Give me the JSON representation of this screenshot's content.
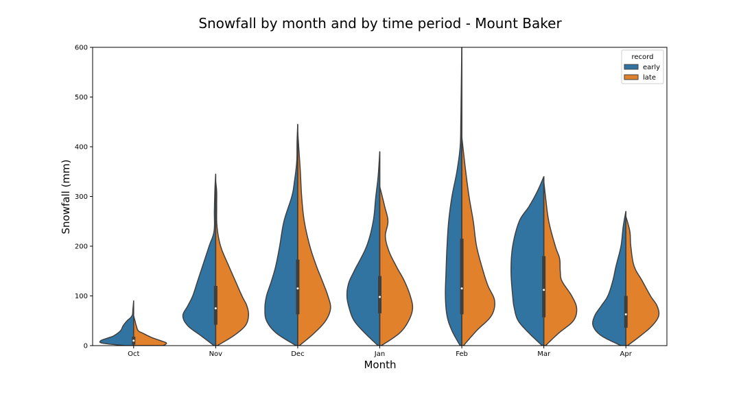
{
  "chart_data": {
    "type": "violin",
    "title": "Snowfall by month and by time period - Mount Baker",
    "xlabel": "Month",
    "ylabel": "Snowfall (mm)",
    "ylim": [
      0,
      600
    ],
    "yticks": [
      0,
      100,
      200,
      300,
      400,
      500,
      600
    ],
    "categories": [
      "Oct",
      "Nov",
      "Dec",
      "Jan",
      "Feb",
      "Mar",
      "Apr"
    ],
    "split": true,
    "legend": {
      "title": "record",
      "position": "top-right",
      "entries": [
        "early",
        "late"
      ]
    },
    "colors": {
      "early": "#3274a1",
      "late": "#e1812c",
      "outline": "#3f3f3f",
      "box": "#3f3f3f",
      "median": "#ffffff"
    },
    "series": [
      {
        "name": "early",
        "distributions": [
          {
            "category": "Oct",
            "min": 0,
            "max": 90,
            "profile": [
              [
                0,
                0.25
              ],
              [
                5,
                0.95
              ],
              [
                10,
                1.0
              ],
              [
                15,
                0.8
              ],
              [
                20,
                0.6
              ],
              [
                30,
                0.4
              ],
              [
                40,
                0.32
              ],
              [
                50,
                0.2
              ],
              [
                60,
                0.05
              ],
              [
                75,
                0.02
              ],
              [
                90,
                0
              ]
            ]
          },
          {
            "category": "Nov",
            "min": 0,
            "max": 345,
            "profile": [
              [
                0,
                0.05
              ],
              [
                20,
                0.45
              ],
              [
                40,
                0.85
              ],
              [
                60,
                1.0
              ],
              [
                80,
                0.85
              ],
              [
                100,
                0.7
              ],
              [
                130,
                0.55
              ],
              [
                160,
                0.4
              ],
              [
                200,
                0.2
              ],
              [
                230,
                0.05
              ],
              [
                270,
                0.04
              ],
              [
                300,
                0.03
              ],
              [
                320,
                0.02
              ],
              [
                345,
                0
              ]
            ]
          },
          {
            "category": "Dec",
            "min": 0,
            "max": 445,
            "profile": [
              [
                0,
                0.05
              ],
              [
                25,
                0.65
              ],
              [
                50,
                0.95
              ],
              [
                75,
                1.0
              ],
              [
                100,
                0.95
              ],
              [
                130,
                0.8
              ],
              [
                160,
                0.67
              ],
              [
                200,
                0.55
              ],
              [
                250,
                0.42
              ],
              [
                300,
                0.18
              ],
              [
                330,
                0.1
              ],
              [
                370,
                0.03
              ],
              [
                410,
                0.02
              ],
              [
                445,
                0
              ]
            ]
          },
          {
            "category": "Jan",
            "min": 0,
            "max": 390,
            "profile": [
              [
                0,
                0.05
              ],
              [
                25,
                0.45
              ],
              [
                50,
                0.78
              ],
              [
                75,
                0.93
              ],
              [
                100,
                1.0
              ],
              [
                125,
                0.95
              ],
              [
                150,
                0.78
              ],
              [
                200,
                0.4
              ],
              [
                250,
                0.2
              ],
              [
                300,
                0.12
              ],
              [
                340,
                0.05
              ],
              [
                390,
                0
              ]
            ]
          },
          {
            "category": "Feb",
            "min": 0,
            "max": 600,
            "profile": [
              [
                0,
                0.05
              ],
              [
                30,
                0.3
              ],
              [
                60,
                0.45
              ],
              [
                100,
                0.5
              ],
              [
                150,
                0.48
              ],
              [
                200,
                0.45
              ],
              [
                250,
                0.4
              ],
              [
                300,
                0.3
              ],
              [
                350,
                0.15
              ],
              [
                400,
                0.05
              ],
              [
                450,
                0.03
              ],
              [
                500,
                0.02
              ],
              [
                600,
                0
              ]
            ]
          },
          {
            "category": "Mar",
            "min": 0,
            "max": 340,
            "profile": [
              [
                0,
                0.05
              ],
              [
                25,
                0.45
              ],
              [
                50,
                0.78
              ],
              [
                75,
                0.9
              ],
              [
                100,
                0.95
              ],
              [
                150,
                1.0
              ],
              [
                200,
                0.95
              ],
              [
                250,
                0.75
              ],
              [
                280,
                0.45
              ],
              [
                310,
                0.2
              ],
              [
                340,
                0
              ]
            ]
          },
          {
            "category": "Apr",
            "min": 0,
            "max": 270,
            "profile": [
              [
                0,
                0.15
              ],
              [
                20,
                0.75
              ],
              [
                40,
                1.0
              ],
              [
                60,
                0.95
              ],
              [
                80,
                0.75
              ],
              [
                100,
                0.55
              ],
              [
                130,
                0.4
              ],
              [
                160,
                0.3
              ],
              [
                200,
                0.15
              ],
              [
                240,
                0.08
              ],
              [
                270,
                0
              ]
            ]
          }
        ],
        "box": [
          {
            "category": "Oct",
            "q1": 2,
            "median": 10,
            "q3": 18
          },
          {
            "category": "Nov",
            "q1": 42,
            "median": 75,
            "q3": 120
          },
          {
            "category": "Dec",
            "q1": 63,
            "median": 115,
            "q3": 173
          },
          {
            "category": "Jan",
            "q1": 65,
            "median": 98,
            "q3": 140
          },
          {
            "category": "Feb",
            "q1": 63,
            "median": 115,
            "q3": 215
          },
          {
            "category": "Mar",
            "q1": 57,
            "median": 112,
            "q3": 180
          },
          {
            "category": "Apr",
            "q1": 36,
            "median": 63,
            "q3": 100
          }
        ]
      },
      {
        "name": "late",
        "distributions": [
          {
            "category": "Oct",
            "min": 0,
            "max": 60,
            "profile": [
              [
                0,
                0.9
              ],
              [
                5,
                1.0
              ],
              [
                10,
                0.82
              ],
              [
                15,
                0.6
              ],
              [
                20,
                0.43
              ],
              [
                25,
                0.28
              ],
              [
                30,
                0.14
              ],
              [
                40,
                0.08
              ],
              [
                50,
                0.04
              ],
              [
                60,
                0
              ]
            ]
          },
          {
            "category": "Nov",
            "min": 0,
            "max": 330,
            "profile": [
              [
                0,
                0.05
              ],
              [
                20,
                0.55
              ],
              [
                40,
                0.9
              ],
              [
                60,
                1.0
              ],
              [
                80,
                0.95
              ],
              [
                100,
                0.8
              ],
              [
                130,
                0.6
              ],
              [
                160,
                0.4
              ],
              [
                200,
                0.15
              ],
              [
                240,
                0.04
              ],
              [
                280,
                0.03
              ],
              [
                310,
                0.03
              ],
              [
                330,
                0
              ]
            ]
          },
          {
            "category": "Dec",
            "min": 0,
            "max": 430,
            "profile": [
              [
                0,
                0.05
              ],
              [
                25,
                0.5
              ],
              [
                50,
                0.85
              ],
              [
                75,
                1.0
              ],
              [
                100,
                0.92
              ],
              [
                130,
                0.75
              ],
              [
                160,
                0.57
              ],
              [
                200,
                0.37
              ],
              [
                250,
                0.2
              ],
              [
                300,
                0.12
              ],
              [
                350,
                0.08
              ],
              [
                400,
                0.03
              ],
              [
                430,
                0
              ]
            ]
          },
          {
            "category": "Jan",
            "min": 0,
            "max": 320,
            "profile": [
              [
                0,
                0.05
              ],
              [
                25,
                0.6
              ],
              [
                50,
                0.88
              ],
              [
                75,
                1.0
              ],
              [
                100,
                0.93
              ],
              [
                130,
                0.75
              ],
              [
                160,
                0.5
              ],
              [
                190,
                0.28
              ],
              [
                220,
                0.17
              ],
              [
                250,
                0.25
              ],
              [
                280,
                0.15
              ],
              [
                320,
                0
              ]
            ]
          },
          {
            "category": "Feb",
            "min": 0,
            "max": 420,
            "profile": [
              [
                0,
                0.05
              ],
              [
                30,
                0.45
              ],
              [
                60,
                0.9
              ],
              [
                90,
                1.0
              ],
              [
                120,
                0.8
              ],
              [
                150,
                0.65
              ],
              [
                200,
                0.45
              ],
              [
                250,
                0.35
              ],
              [
                300,
                0.22
              ],
              [
                350,
                0.12
              ],
              [
                390,
                0.05
              ],
              [
                420,
                0
              ]
            ]
          },
          {
            "category": "Mar",
            "min": 0,
            "max": 330,
            "profile": [
              [
                0,
                0.05
              ],
              [
                25,
                0.45
              ],
              [
                50,
                0.9
              ],
              [
                75,
                1.0
              ],
              [
                100,
                0.85
              ],
              [
                130,
                0.55
              ],
              [
                150,
                0.5
              ],
              [
                175,
                0.48
              ],
              [
                200,
                0.35
              ],
              [
                250,
                0.15
              ],
              [
                300,
                0.05
              ],
              [
                330,
                0
              ]
            ]
          },
          {
            "category": "Apr",
            "min": 0,
            "max": 260,
            "profile": [
              [
                0,
                0.05
              ],
              [
                20,
                0.45
              ],
              [
                40,
                0.8
              ],
              [
                60,
                1.0
              ],
              [
                80,
                0.95
              ],
              [
                100,
                0.75
              ],
              [
                130,
                0.5
              ],
              [
                160,
                0.25
              ],
              [
                200,
                0.15
              ],
              [
                230,
                0.12
              ],
              [
                260,
                0
              ]
            ]
          }
        ]
      }
    ]
  }
}
